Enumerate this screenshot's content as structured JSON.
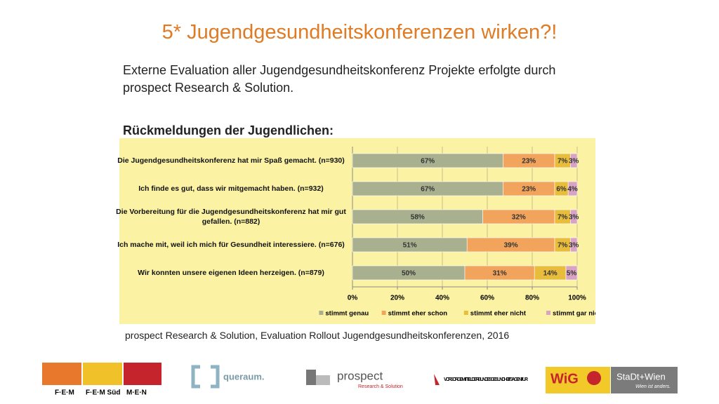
{
  "title": "5* Jugendgesundheitskonferenzen wirken?!",
  "intro": "Externe Evaluation aller Jugendgesundheitskonferenz Projekte erfolgte durch prospect Research & Solution.",
  "subheading": "Rückmeldungen der Jugendlichen:",
  "source": "prospect Research & Solution, Evaluation Rollout Jugendgesundheitskonferenzen, 2016",
  "logos": [
    "F·E·M",
    "F·E·M Süd",
    "M·E·N",
    "queraum.",
    "prospect",
    "Research & Solution",
    "VORSORGEMITTEL DER BUNDESGESUNDHEITSAGENTUR",
    "WiG",
    "StaDt+Wien",
    "Wien ist anders."
  ],
  "chart_data": {
    "type": "bar",
    "orientation": "horizontal",
    "stacked": true,
    "categories": [
      "Die Jugendgesundheitskonferenz hat mir Spaß gemacht. (n=930)",
      "Ich finde es gut, dass wir mitgemacht haben. (n=932)",
      "Die Vorbereitung für die Jugendgesundheitskonferenz hat mir gut gefallen. (n=882)",
      "Ich mache mit, weil ich mich für Gesundheit interessiere. (n=676)",
      "Wir konnten unsere eigenen Ideen herzeigen. (n=879)"
    ],
    "series": [
      {
        "name": "stimmt genau",
        "color": "#a8b08f",
        "values": [
          67,
          67,
          58,
          51,
          50
        ],
        "value_labels": [
          "67%",
          "67%",
          "58%",
          "51%",
          "50%"
        ]
      },
      {
        "name": "stimmt eher schon",
        "color": "#f2a45c",
        "values": [
          23,
          23,
          32,
          39,
          31
        ],
        "value_labels": [
          "23%",
          "23%",
          "32%",
          "39%",
          "31%"
        ]
      },
      {
        "name": "stimmt eher nicht",
        "color": "#e9bd3c",
        "values": [
          7,
          6,
          7,
          7,
          14
        ],
        "value_labels": [
          "7%",
          "6%",
          "7%",
          "7%",
          "14%"
        ]
      },
      {
        "name": "stimmt gar nicht",
        "color": "#d9a3c4",
        "values": [
          3,
          4,
          3,
          3,
          5
        ],
        "value_labels": [
          "3%",
          "4%",
          "3%",
          "3%",
          "5%"
        ]
      }
    ],
    "xlim": [
      0,
      100
    ],
    "xticks": [
      {
        "value": 0,
        "label": "0%"
      },
      {
        "value": 20,
        "label": "20%"
      },
      {
        "value": 40,
        "label": "40%"
      },
      {
        "value": 60,
        "label": "60%"
      },
      {
        "value": 80,
        "label": "80%"
      },
      {
        "value": 100,
        "label": "100%"
      }
    ],
    "grid": true,
    "legend": "bottom"
  }
}
